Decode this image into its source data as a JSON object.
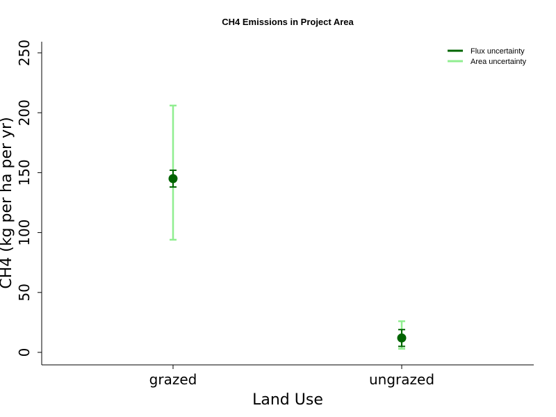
{
  "chart_data": {
    "type": "scatter",
    "title": "CH4 Emissions in Project Area",
    "xlabel": "Land Use",
    "ylabel": "CH4 (kg per ha per yr)",
    "categories": [
      "grazed",
      "ungrazed"
    ],
    "values": [
      145,
      12
    ],
    "yticks": [
      "0",
      "50",
      "100",
      "150",
      "200",
      "250"
    ],
    "ylim": [
      -10,
      260
    ],
    "grid": false,
    "legend_position": "top-right",
    "series": [
      {
        "name": "Flux uncertainty",
        "color": "#006400",
        "lower": [
          138,
          5
        ],
        "upper": [
          152,
          19
        ]
      },
      {
        "name": "Area uncertainty",
        "color": "#90ee90",
        "lower": [
          94,
          3
        ],
        "upper": [
          206,
          26
        ]
      }
    ],
    "point_color": "#006400"
  }
}
